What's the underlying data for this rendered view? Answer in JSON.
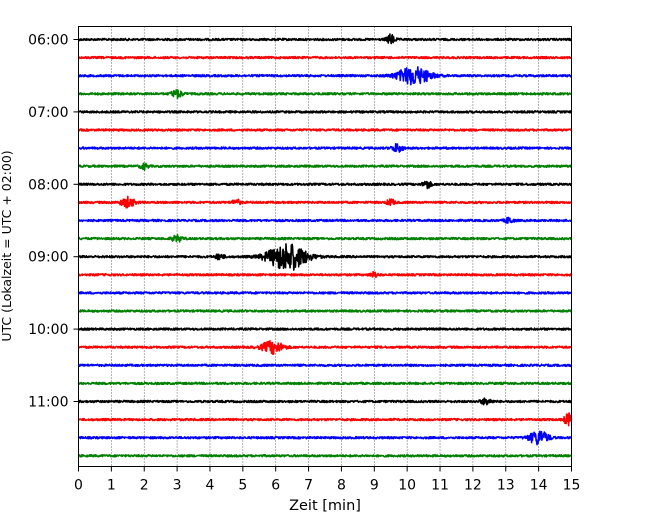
{
  "chart_data": {
    "type": "line",
    "xlabel": "Zeit  [min]",
    "ylabel": "UTC (Lokalzeit = UTC + 02:00)",
    "xlim": [
      0,
      15
    ],
    "x_ticks": [
      "0",
      "1",
      "2",
      "3",
      "4",
      "5",
      "6",
      "7",
      "8",
      "9",
      "10",
      "11",
      "12",
      "13",
      "14",
      "15"
    ],
    "y_tick_labels": [
      "06:00",
      "07:00",
      "08:00",
      "09:00",
      "10:00",
      "11:00"
    ],
    "vertical_grid": true,
    "grid_style": "dotted",
    "color_cycle": [
      "#000000",
      "#ff0000",
      "#0000ff",
      "#008000"
    ],
    "traces": [
      {
        "start": "06:00",
        "color": "#000000",
        "events": [
          {
            "t": 9.5,
            "amp": 0.25,
            "dur": 0.3
          }
        ]
      },
      {
        "start": "06:15",
        "color": "#ff0000",
        "events": []
      },
      {
        "start": "06:30",
        "color": "#0000ff",
        "events": [
          {
            "t": 10.2,
            "amp": 0.45,
            "dur": 1.2
          }
        ]
      },
      {
        "start": "06:45",
        "color": "#008000",
        "events": [
          {
            "t": 3.0,
            "amp": 0.2,
            "dur": 0.4
          }
        ]
      },
      {
        "start": "07:00",
        "color": "#000000",
        "events": []
      },
      {
        "start": "07:15",
        "color": "#ff0000",
        "events": []
      },
      {
        "start": "07:30",
        "color": "#0000ff",
        "events": [
          {
            "t": 9.7,
            "amp": 0.2,
            "dur": 0.4
          }
        ]
      },
      {
        "start": "07:45",
        "color": "#008000",
        "events": [
          {
            "t": 2.0,
            "amp": 0.15,
            "dur": 0.3
          }
        ]
      },
      {
        "start": "08:00",
        "color": "#000000",
        "events": [
          {
            "t": 10.6,
            "amp": 0.2,
            "dur": 0.3
          }
        ]
      },
      {
        "start": "08:15",
        "color": "#ff0000",
        "events": [
          {
            "t": 1.5,
            "amp": 0.25,
            "dur": 0.5
          },
          {
            "t": 4.8,
            "amp": 0.15,
            "dur": 0.3
          },
          {
            "t": 9.5,
            "amp": 0.15,
            "dur": 0.3
          }
        ]
      },
      {
        "start": "08:30",
        "color": "#0000ff",
        "events": [
          {
            "t": 13.1,
            "amp": 0.15,
            "dur": 0.3
          }
        ]
      },
      {
        "start": "08:45",
        "color": "#008000",
        "events": [
          {
            "t": 3.0,
            "amp": 0.15,
            "dur": 0.4
          }
        ]
      },
      {
        "start": "09:00",
        "color": "#000000",
        "events": [
          {
            "t": 6.35,
            "amp": 0.7,
            "dur": 1.4
          },
          {
            "t": 4.3,
            "amp": 0.15,
            "dur": 0.3
          }
        ]
      },
      {
        "start": "09:15",
        "color": "#ff0000",
        "events": [
          {
            "t": 9.0,
            "amp": 0.12,
            "dur": 0.3
          }
        ]
      },
      {
        "start": "09:30",
        "color": "#0000ff",
        "events": []
      },
      {
        "start": "09:45",
        "color": "#008000",
        "events": []
      },
      {
        "start": "10:00",
        "color": "#000000",
        "events": []
      },
      {
        "start": "10:15",
        "color": "#ff0000",
        "events": [
          {
            "t": 5.9,
            "amp": 0.3,
            "dur": 0.8
          }
        ]
      },
      {
        "start": "10:30",
        "color": "#0000ff",
        "events": []
      },
      {
        "start": "10:45",
        "color": "#008000",
        "events": []
      },
      {
        "start": "11:00",
        "color": "#000000",
        "events": [
          {
            "t": 12.4,
            "amp": 0.15,
            "dur": 0.4
          }
        ]
      },
      {
        "start": "11:15",
        "color": "#ff0000",
        "events": [
          {
            "t": 14.9,
            "amp": 0.3,
            "dur": 0.3
          }
        ]
      },
      {
        "start": "11:30",
        "color": "#0000ff",
        "events": [
          {
            "t": 14.0,
            "amp": 0.35,
            "dur": 0.7
          }
        ]
      },
      {
        "start": "11:45",
        "color": "#008000",
        "events": []
      }
    ]
  }
}
